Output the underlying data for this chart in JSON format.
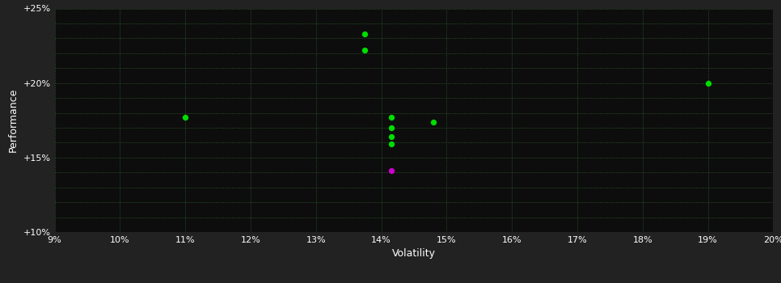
{
  "background_color": "#222222",
  "plot_bg_color": "#0d0d0d",
  "grid_color": "#3a7a3a",
  "text_color": "#ffffff",
  "xlabel": "Volatility",
  "ylabel": "Performance",
  "xlim": [
    0.09,
    0.2
  ],
  "ylim": [
    0.1,
    0.25
  ],
  "xticks": [
    0.09,
    0.1,
    0.11,
    0.12,
    0.13,
    0.14,
    0.15,
    0.16,
    0.17,
    0.18,
    0.19,
    0.2
  ],
  "yticks_major": [
    0.1,
    0.15,
    0.2,
    0.25
  ],
  "yticks_minor": [
    0.1,
    0.11,
    0.12,
    0.13,
    0.14,
    0.15,
    0.16,
    0.17,
    0.18,
    0.19,
    0.2,
    0.21,
    0.22,
    0.23,
    0.24,
    0.25
  ],
  "ytick_labels": [
    "+10%",
    "+15%",
    "+20%",
    "+25%"
  ],
  "xtick_labels": [
    "9%",
    "10%",
    "11%",
    "12%",
    "13%",
    "14%",
    "15%",
    "16%",
    "17%",
    "18%",
    "19%",
    "20%"
  ],
  "green_points": [
    [
      0.1375,
      0.233
    ],
    [
      0.1375,
      0.222
    ],
    [
      0.11,
      0.177
    ],
    [
      0.1415,
      0.177
    ],
    [
      0.148,
      0.174
    ],
    [
      0.1415,
      0.17
    ],
    [
      0.1415,
      0.164
    ],
    [
      0.1415,
      0.159
    ],
    [
      0.19,
      0.2
    ]
  ],
  "magenta_points": [
    [
      0.1415,
      0.141
    ]
  ],
  "green_color": "#00dd00",
  "magenta_color": "#cc00cc",
  "marker_size": 28
}
